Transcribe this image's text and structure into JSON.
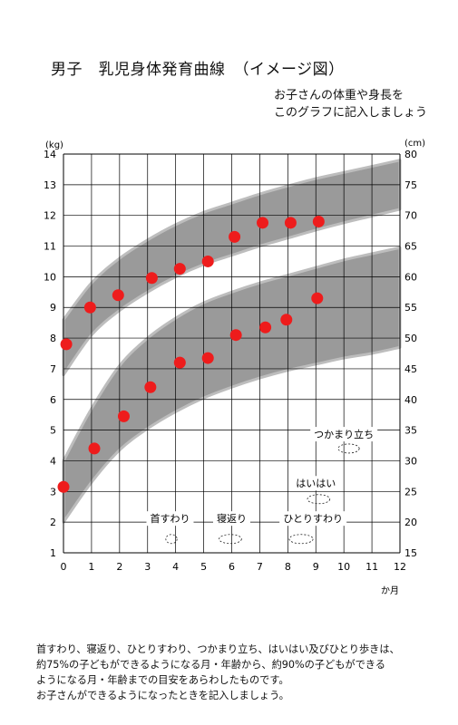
{
  "page": {
    "title": "男子　乳児身体発育曲線　（イメージ図）",
    "subtitle_lines": [
      "お子さんの体重や身長を",
      "このグラフに記入しましょう"
    ],
    "notes": [
      "首すわり、寝返り、ひとりすわり、つかまり立ち、はいはい及びひとり歩きは、",
      "約75%の子どもができるようになる月・年齢から、約90%の子どもができる",
      "ようになる月・年齢までの目安をあらわしたものです。",
      "お子さんができるようになったときを記入しましょう。"
    ]
  },
  "colors": {
    "band": "#9a9a9a",
    "grid": "#000000",
    "dots": "#ee1c1c"
  },
  "chart_data": {
    "type": "scatter",
    "x_unit_label": "か月",
    "y_left_unit": "(kg)",
    "y_right_unit": "(cm)",
    "xlim": [
      0,
      12
    ],
    "ylim_left": [
      1,
      14
    ],
    "ylim_right": [
      15,
      80
    ],
    "x_ticks": [
      "0",
      "1",
      "2",
      "3",
      "4",
      "5",
      "6",
      "7",
      "8",
      "9",
      "10",
      "11",
      "12"
    ],
    "y_left_ticks": [
      "1",
      "2",
      "3",
      "4",
      "5",
      "6",
      "7",
      "8",
      "9",
      "10",
      "11",
      "12",
      "13",
      "14"
    ],
    "y_right_ticks": [
      "15",
      "20",
      "25",
      "30",
      "35",
      "40",
      "45",
      "50",
      "55",
      "60",
      "65",
      "70",
      "75",
      "80"
    ],
    "grid": true,
    "bands": [
      {
        "axis": "right",
        "x": [
          0,
          1,
          2,
          3,
          4,
          5,
          6,
          7,
          8,
          9,
          10,
          11,
          12
        ],
        "lower": [
          44,
          50.5,
          54.5,
          57.5,
          60,
          62,
          63.5,
          65,
          66.3,
          67.6,
          68.8,
          69.9,
          71
        ],
        "upper": [
          53,
          59,
          63,
          66,
          68.5,
          70.5,
          72,
          73.5,
          74.8,
          76,
          77,
          78,
          79
        ]
      },
      {
        "axis": "left",
        "x": [
          0,
          1,
          2,
          3,
          4,
          5,
          6,
          7,
          8,
          9,
          10,
          11,
          12
        ],
        "lower": [
          2,
          3.3,
          4.35,
          5.05,
          5.6,
          6.05,
          6.4,
          6.7,
          6.95,
          7.15,
          7.35,
          7.5,
          7.7
        ],
        "upper": [
          4,
          5.7,
          7.1,
          8,
          8.65,
          9.15,
          9.5,
          9.8,
          10.05,
          10.3,
          10.55,
          10.75,
          10.95
        ]
      }
    ],
    "series": [
      {
        "axis": "right",
        "points": [
          [
            0.1,
            49
          ],
          [
            0.95,
            55
          ],
          [
            1.95,
            57
          ],
          [
            3.15,
            59.8
          ],
          [
            4.15,
            61.3
          ],
          [
            5.15,
            62.5
          ],
          [
            6.1,
            66.5
          ],
          [
            7.1,
            68.8
          ],
          [
            8.1,
            68.8
          ],
          [
            9.1,
            69
          ]
        ]
      },
      {
        "axis": "left",
        "points": [
          [
            0,
            3.15
          ],
          [
            1.1,
            4.4
          ],
          [
            2.15,
            5.45
          ],
          [
            3.1,
            6.4
          ],
          [
            4.15,
            7.2
          ],
          [
            5.15,
            7.35
          ],
          [
            6.15,
            8.1
          ],
          [
            7.2,
            8.35
          ],
          [
            7.95,
            8.6
          ],
          [
            9.05,
            9.3
          ]
        ]
      }
    ],
    "milestones": [
      {
        "label": "首すわり",
        "x": 3.8,
        "y": 2,
        "oval_x": [
          3.65,
          4.05
        ],
        "oval_y": 1.45
      },
      {
        "label": "寝返り",
        "x": 6.0,
        "y": 2,
        "oval_x": [
          5.55,
          6.35
        ],
        "oval_y": 1.45
      },
      {
        "label": "ひとりすわり",
        "x": 8.9,
        "y": 2,
        "oval_x": [
          8.05,
          8.9
        ],
        "oval_y": 1.45
      },
      {
        "label": "はいはい",
        "x": 9.0,
        "y": 3.15,
        "oval_x": [
          8.7,
          9.5
        ],
        "oval_y": 2.75
      },
      {
        "label": "つかまり立ち",
        "x": 10.0,
        "y": 4.75,
        "oval_x": [
          9.8,
          10.55
        ],
        "oval_y": 4.4
      }
    ]
  }
}
